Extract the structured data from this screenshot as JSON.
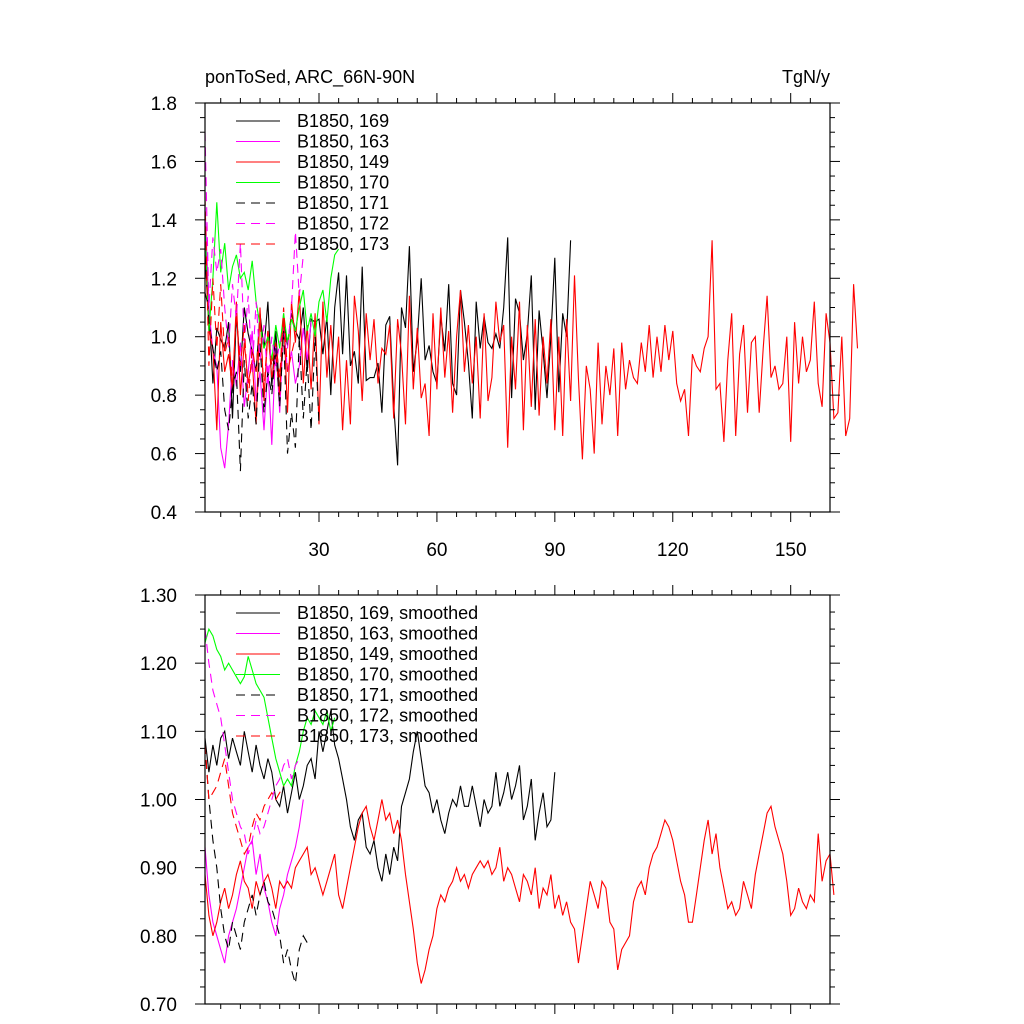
{
  "colors": {
    "black": "#000000",
    "magenta": "#ff00ff",
    "red": "#ff0000",
    "green": "#00ff00"
  },
  "chart_data": [
    {
      "type": "line",
      "title_left": "ponToSed, ARC_66N-90N",
      "title_right": "TgN/y",
      "xlabel": "",
      "ylabel": "",
      "xlim": [
        1,
        160
      ],
      "ylim": [
        0.4,
        1.8
      ],
      "x_ticks": [
        30,
        60,
        90,
        120,
        150
      ],
      "x_tick_labels": [
        "30",
        "60",
        "90",
        "120",
        "150"
      ],
      "y_ticks": [
        0.4,
        0.6,
        0.8,
        1.0,
        1.2,
        1.4,
        1.6,
        1.8
      ],
      "y_tick_labels": [
        "0.4",
        "0.6",
        "0.8",
        "1.0",
        "1.2",
        "1.4",
        "1.6",
        "1.8"
      ],
      "legend_position": "top-left",
      "series": [
        {
          "name": "B1850, 169",
          "color": "#000000",
          "dash": "solid",
          "y": [
            1.15,
            1.1,
            0.84,
            1.03,
            0.99,
            0.96,
            1.05,
            0.72,
            1.08,
            0.88,
            1.1,
            1.01,
            0.95,
            0.88,
            1.08,
            0.96,
            1.12,
            0.83,
            1.02,
            0.8,
            1.05,
            0.97,
            1.08,
            1.02,
            0.99,
            1.1,
            0.88,
            1.06,
            1.05,
            1.06,
            0.94,
            1.07,
            0.8,
            1.1,
            1.22,
            0.94,
            1.21,
            0.9,
            0.95,
            0.84,
            1.24,
            0.85,
            0.86,
            0.86,
            0.91,
            0.74,
            1.04,
            1.07,
            0.77,
            0.56,
            1.1,
            1.03,
            1.31,
            0.88,
            0.99,
            1.2,
            0.92,
            0.97,
            0.88,
            0.84,
            1.07,
            0.95,
            1.18,
            0.84,
            0.8,
            1.16,
            1.05,
            0.91,
            0.72,
            1.12,
            0.96,
            1.07,
            0.98,
            0.96,
            1.01,
            0.96,
            1.1,
            1.34,
            0.79,
            1.13,
            1.08,
            0.92,
            1.01,
            1.21,
            0.75,
            1.09,
            0.95,
            0.79,
            1.0,
            1.27,
            0.81,
            1.08,
            1.0,
            1.33
          ]
        },
        {
          "name": "B1850, 163",
          "color": "#ff00ff",
          "dash": "solid",
          "y": [
            1.45,
            1.1,
            0.95,
            0.9,
            0.62,
            0.55,
            0.7,
            0.92,
            0.83,
            0.98,
            0.76,
            0.88,
            1.02,
            0.78,
            0.88,
            0.68,
            0.9,
            0.63,
            0.98,
            0.74,
            1.05,
            0.88,
            0.95,
            0.84,
            0.9,
            1.03,
            0.92,
            1.05
          ]
        },
        {
          "name": "B1850, 149",
          "color": "#ff0000",
          "dash": "solid",
          "y": [
            1.3,
            1.02,
            0.96,
            0.68,
            1.05,
            0.88,
            0.94,
            0.82,
            1.12,
            0.8,
            0.98,
            0.84,
            0.92,
            0.7,
            1.1,
            0.78,
            1.02,
            0.86,
            0.94,
            0.8,
            1.08,
            0.74,
            1.12,
            0.98,
            1.16,
            0.84,
            1.04,
            0.82,
            1.08,
            0.7,
            1.12,
            0.86,
            1.04,
            0.84,
            1.0,
            0.68,
            0.92,
            0.7,
            1.14,
            1.02,
            0.78,
            1.08,
            0.92,
            1.06,
            0.84,
            0.96,
            0.94,
            1.04,
            0.72,
            1.06,
            0.94,
            0.7,
            1.14,
            0.82,
            1.03,
            0.79,
            0.84,
            0.66,
            1.08,
            0.82,
            1.1,
            0.86,
            1.02,
            0.74,
            1.0,
            1.16,
            0.88,
            1.04,
            0.84,
            1.0,
            0.72,
            1.08,
            0.78,
            0.86,
            1.12,
            0.98,
            1.04,
            0.62,
            1.0,
            0.82,
            1.12,
            0.68,
            1.04,
            0.76,
            1.06,
            0.73,
            1.0,
            0.84,
            1.06,
            0.68,
            1.0,
            0.66,
            1.06,
            0.78,
            1.21,
            0.86,
            0.58,
            0.9,
            0.82,
            0.6,
            0.98,
            0.7,
            0.9,
            0.8,
            0.96,
            0.66,
            0.98,
            0.82,
            0.92,
            0.86,
            0.84,
            0.98,
            0.88,
            1.04,
            0.86,
            1.0,
            0.88,
            1.04,
            0.92,
            1.02,
            0.84,
            0.78,
            0.82,
            0.66,
            0.94,
            0.9,
            0.88,
            0.96,
            1.0,
            1.33,
            0.82,
            0.84,
            0.64,
            0.92,
            1.08,
            0.66,
            0.94,
            1.04,
            0.74,
            0.98,
            1.0,
            0.74,
            0.96,
            1.14,
            0.86,
            0.9,
            0.82,
            0.84,
            1.0,
            0.64,
            1.05,
            0.84,
            1.0,
            0.88,
            0.92,
            1.12,
            0.84,
            0.76,
            1.08,
            0.98,
            0.72,
            0.74,
            1.0,
            0.66,
            0.72,
            1.18,
            0.96
          ]
        },
        {
          "name": "B1850, 170",
          "color": "#00ff00",
          "dash": "solid",
          "y": [
            1.38,
            1.02,
            1.2,
            1.46,
            1.22,
            1.32,
            1.16,
            1.24,
            1.28,
            1.2,
            1.22,
            1.16,
            1.26,
            1.12,
            1.04,
            0.96,
            1.0,
            0.92,
            1.04,
            0.96,
            1.08,
            0.98,
            1.06,
            1.02,
            1.1,
            1.16,
            1.02,
            1.08,
            1.0,
            1.12,
            1.16,
            1.05,
            1.2,
            1.28,
            1.3
          ]
        },
        {
          "name": "B1850, 171",
          "color": "#000000",
          "dash": "dashed",
          "y": [
            1.28,
            1.05,
            0.96,
            0.88,
            0.95,
            0.75,
            0.68,
            0.82,
            0.88,
            0.54,
            0.92,
            0.72,
            0.84,
            0.7,
            0.98,
            0.74,
            0.88,
            0.8,
            0.96,
            0.76,
            1.02,
            0.6,
            0.74,
            0.62,
            1.0,
            0.72,
            0.92,
            0.68,
            1.0,
            0.7
          ]
        },
        {
          "name": "B1850, 172",
          "color": "#ff00ff",
          "dash": "dashed",
          "y": [
            1.7,
            1.1,
            1.34,
            1.22,
            1.3,
            1.1,
            0.96,
            1.18,
            1.06,
            1.32,
            0.98,
            1.14,
            0.88,
            1.12,
            0.92,
            1.04,
            0.84,
            1.0,
            0.9,
            0.98,
            1.02,
            0.96,
            1.1,
            1.36,
            1.14,
            1.28
          ]
        },
        {
          "name": "B1850, 173",
          "color": "#ff0000",
          "dash": "dashed",
          "y": [
            1.48,
            0.9,
            1.2,
            0.96,
            1.18,
            0.94,
            1.0,
            0.84,
            1.08,
            0.9,
            1.04,
            0.78,
            0.96,
            0.88,
            1.06,
            0.82,
            1.02,
            0.9,
            0.98,
            0.86,
            1.1,
            0.88,
            0.94,
            1.0
          ]
        }
      ]
    },
    {
      "type": "line",
      "xlabel": "",
      "ylabel": "",
      "xlim": [
        1,
        160
      ],
      "ylim": [
        0.7,
        1.3
      ],
      "x_ticks": [
        30,
        60,
        90,
        120,
        150
      ],
      "y_ticks": [
        0.7,
        0.8,
        0.9,
        1.0,
        1.1,
        1.2,
        1.3
      ],
      "y_tick_labels": [
        "0.70",
        "0.80",
        "0.90",
        "1.00",
        "1.10",
        "1.20",
        "1.30"
      ],
      "legend_position": "top-left",
      "series": [
        {
          "name": "B1850, 169, smoothed",
          "color": "#000000",
          "dash": "solid",
          "y": [
            1.09,
            1.04,
            1.08,
            1.05,
            1.09,
            1.1,
            1.06,
            1.09,
            1.07,
            1.05,
            1.1,
            1.07,
            1.04,
            1.08,
            1.05,
            1.03,
            1.06,
            1.04,
            1.0,
            0.99,
            1.02,
            0.98,
            1.01,
            1.04,
            1.0,
            1.02,
            1.05,
            1.06,
            1.03,
            1.1,
            1.07,
            1.1,
            1.13,
            1.08,
            1.06,
            1.03,
            1.0,
            0.96,
            0.94,
            0.97,
            0.98,
            0.93,
            0.92,
            0.94,
            0.9,
            0.88,
            0.92,
            0.89,
            0.93,
            0.91,
            0.99,
            1.01,
            1.03,
            1.07,
            1.1,
            1.06,
            1.02,
            1.01,
            0.98,
            1.0,
            0.97,
            0.95,
            0.98,
            1.0,
            0.99,
            1.02,
            0.99,
            0.99,
            1.02,
            0.99,
            0.96,
            1.0,
            0.98,
            0.99,
            1.04,
            0.99,
            1.01,
            1.04,
            1.0,
            1.02,
            1.05,
            0.97,
            0.99,
            1.03,
            0.94,
            0.98,
            1.01,
            0.96,
            0.97,
            1.04
          ]
        },
        {
          "name": "B1850, 163, smoothed",
          "color": "#ff00ff",
          "dash": "solid",
          "y": [
            0.93,
            0.86,
            0.82,
            0.8,
            0.78,
            0.76,
            0.8,
            0.82,
            0.84,
            0.87,
            0.9,
            0.93,
            0.94,
            0.89,
            0.92,
            0.87,
            0.85,
            0.82,
            0.8,
            0.84,
            0.86,
            0.89,
            0.91,
            0.93,
            0.96,
            1.0
          ]
        },
        {
          "name": "B1850, 149, smoothed",
          "color": "#ff0000",
          "dash": "solid",
          "y": [
            0.89,
            0.83,
            0.8,
            0.82,
            0.85,
            0.87,
            0.84,
            0.86,
            0.89,
            0.91,
            0.88,
            0.87,
            0.84,
            0.88,
            0.86,
            0.88,
            0.89,
            0.87,
            0.84,
            0.88,
            0.87,
            0.88,
            0.87,
            0.9,
            0.91,
            0.92,
            0.93,
            0.89,
            0.9,
            0.88,
            0.86,
            0.88,
            0.9,
            0.92,
            0.86,
            0.84,
            0.87,
            0.9,
            0.93,
            0.96,
            0.98,
            0.99,
            0.96,
            0.94,
            0.97,
            1.0,
            0.97,
            0.98,
            0.95,
            0.97,
            0.94,
            0.89,
            0.85,
            0.81,
            0.76,
            0.73,
            0.75,
            0.78,
            0.8,
            0.84,
            0.86,
            0.85,
            0.87,
            0.88,
            0.9,
            0.88,
            0.89,
            0.87,
            0.89,
            0.9,
            0.91,
            0.9,
            0.91,
            0.89,
            0.9,
            0.93,
            0.88,
            0.9,
            0.89,
            0.87,
            0.85,
            0.89,
            0.88,
            0.86,
            0.9,
            0.84,
            0.87,
            0.86,
            0.89,
            0.84,
            0.86,
            0.83,
            0.85,
            0.82,
            0.81,
            0.76,
            0.8,
            0.84,
            0.88,
            0.86,
            0.84,
            0.88,
            0.87,
            0.82,
            0.81,
            0.75,
            0.78,
            0.79,
            0.8,
            0.85,
            0.87,
            0.88,
            0.86,
            0.9,
            0.92,
            0.93,
            0.95,
            0.97,
            0.96,
            0.94,
            0.91,
            0.88,
            0.86,
            0.82,
            0.82,
            0.86,
            0.9,
            0.94,
            0.97,
            0.92,
            0.95,
            0.9,
            0.87,
            0.84,
            0.85,
            0.83,
            0.84,
            0.88,
            0.86,
            0.84,
            0.89,
            0.92,
            0.95,
            0.98,
            0.99,
            0.96,
            0.94,
            0.92,
            0.88,
            0.83,
            0.84,
            0.87,
            0.85,
            0.84,
            0.86,
            0.85,
            0.95,
            0.88,
            0.91,
            0.92,
            0.86
          ]
        },
        {
          "name": "B1850, 170, smoothed",
          "color": "#00ff00",
          "dash": "solid",
          "y": [
            1.23,
            1.25,
            1.24,
            1.22,
            1.21,
            1.19,
            1.2,
            1.19,
            1.18,
            1.17,
            1.18,
            1.21,
            1.19,
            1.17,
            1.16,
            1.15,
            1.12,
            1.09,
            1.06,
            1.04,
            1.02,
            1.03,
            1.02,
            1.05,
            1.07,
            1.1,
            1.12,
            1.11,
            1.13,
            1.12,
            1.11,
            1.13,
            1.1,
            1.12
          ]
        },
        {
          "name": "B1850, 171, smoothed",
          "color": "#000000",
          "dash": "dashed",
          "y": [
            1.08,
            1.0,
            0.94,
            0.9,
            0.84,
            0.8,
            0.78,
            0.82,
            0.8,
            0.78,
            0.82,
            0.84,
            0.86,
            0.83,
            0.86,
            0.88,
            0.85,
            0.84,
            0.82,
            0.8,
            0.76,
            0.78,
            0.75,
            0.73,
            0.78,
            0.8,
            0.79
          ]
        },
        {
          "name": "B1850, 172, smoothed",
          "color": "#ff00ff",
          "dash": "dashed",
          "y": [
            1.25,
            1.2,
            1.16,
            1.14,
            1.12,
            1.08,
            1.04,
            1.0,
            0.98,
            0.96,
            0.95,
            0.92,
            0.94,
            0.97,
            0.95,
            0.96,
            0.98,
            1.0,
            1.02,
            1.03,
            1.05,
            1.06,
            1.03,
            1.05,
            1.06
          ]
        },
        {
          "name": "B1850, 173, smoothed",
          "color": "#ff0000",
          "dash": "dashed",
          "y": [
            1.08,
            1.0,
            1.01,
            1.02,
            1.04,
            1.06,
            1.02,
            0.98,
            0.96,
            0.94,
            0.92,
            0.93,
            0.96,
            0.98,
            0.97,
            0.99,
            1.0,
            1.01,
            1.0,
            1.01,
            1.02
          ]
        }
      ]
    }
  ]
}
